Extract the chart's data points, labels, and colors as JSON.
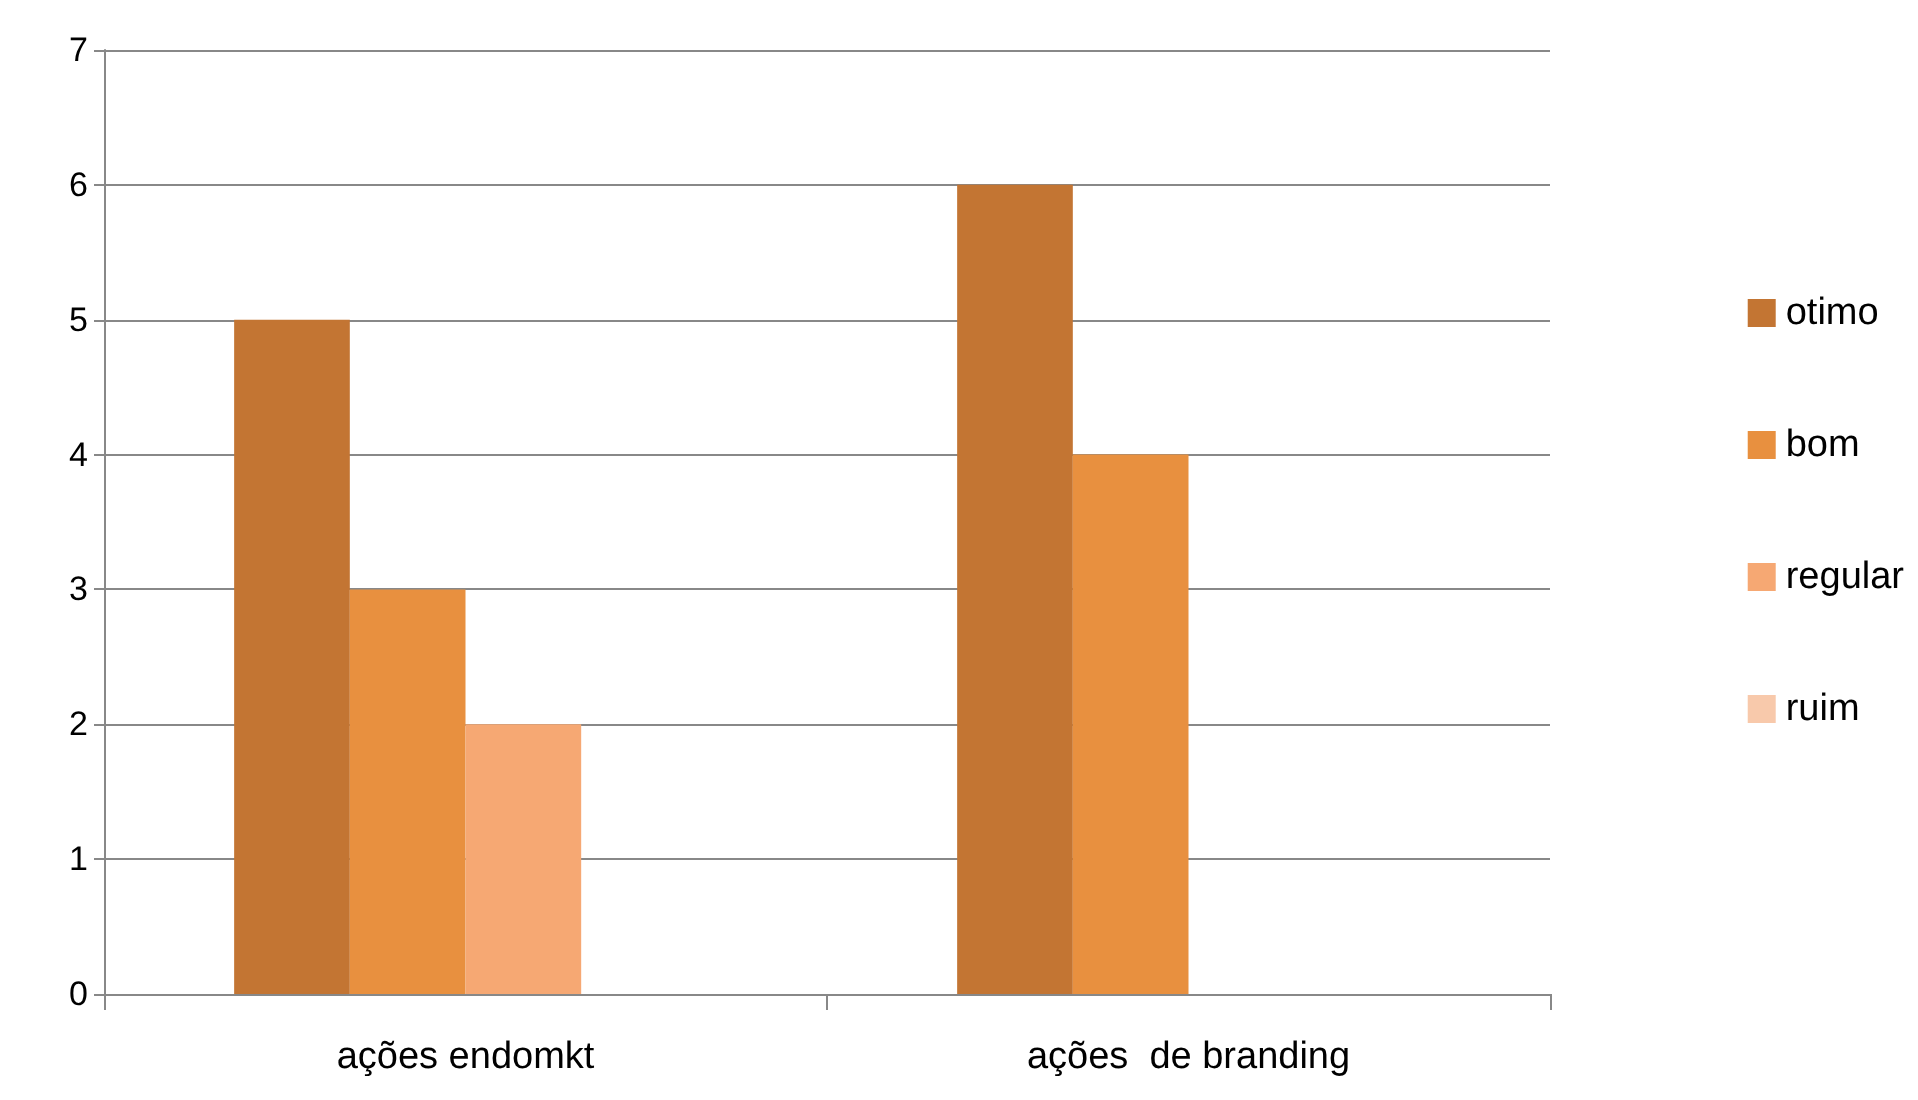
{
  "chart_data": {
    "type": "bar",
    "categories": [
      "ações endomkt",
      "ações  de branding"
    ],
    "series": [
      {
        "name": "otimo",
        "color": "#c37533",
        "values": [
          5,
          6
        ]
      },
      {
        "name": "bom",
        "color": "#e8903f",
        "values": [
          3,
          4
        ]
      },
      {
        "name": "regular",
        "color": "#f6a873",
        "values": [
          2,
          0
        ]
      },
      {
        "name": "ruim",
        "color": "#f8c9ab",
        "values": [
          0,
          0
        ]
      }
    ],
    "ylim": [
      0,
      7
    ],
    "yticks": [
      0,
      1,
      2,
      3,
      4,
      5,
      6,
      7
    ],
    "grid": "y",
    "legend": "right"
  }
}
